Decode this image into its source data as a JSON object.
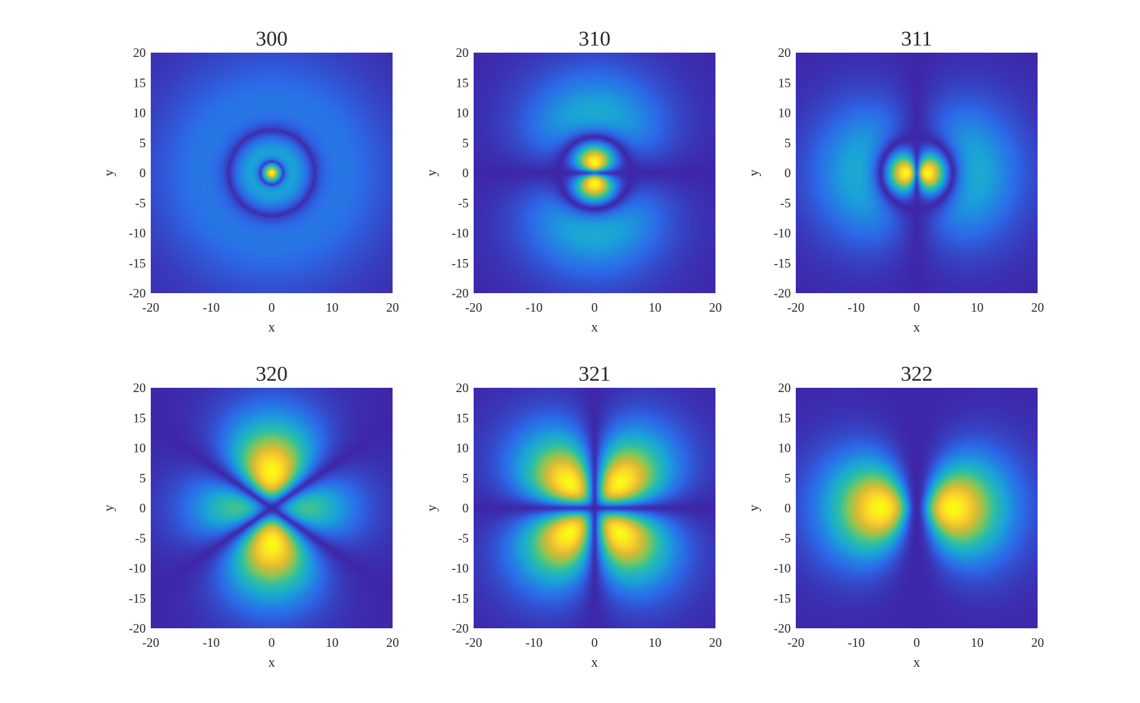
{
  "figure": {
    "background": "#ffffff",
    "colormap": "parula",
    "colormap_stops": [
      "#3e26a8",
      "#2c69e8",
      "#1aa3d9",
      "#2bbfa5",
      "#83c65a",
      "#d9ba33",
      "#fcd12b",
      "#f9fb14"
    ]
  },
  "chart_data": [
    {
      "type": "heatmap",
      "title": "300",
      "n": 3,
      "l": 0,
      "m": 0,
      "xlabel": "x",
      "ylabel": "y",
      "xlim": [
        -20,
        20
      ],
      "ylim": [
        -20,
        20
      ],
      "xticks": [
        -20,
        -10,
        0,
        10,
        20
      ],
      "yticks": [
        -20,
        -15,
        -10,
        -5,
        0,
        5,
        10,
        15,
        20
      ],
      "grid": false
    },
    {
      "type": "heatmap",
      "title": "310",
      "n": 3,
      "l": 1,
      "m": 0,
      "xlabel": "x",
      "ylabel": "y",
      "xlim": [
        -20,
        20
      ],
      "ylim": [
        -20,
        20
      ],
      "xticks": [
        -20,
        -10,
        0,
        10,
        20
      ],
      "yticks": [
        -20,
        -15,
        -10,
        -5,
        0,
        5,
        10,
        15,
        20
      ],
      "grid": false
    },
    {
      "type": "heatmap",
      "title": "311",
      "n": 3,
      "l": 1,
      "m": 1,
      "xlabel": "x",
      "ylabel": "y",
      "xlim": [
        -20,
        20
      ],
      "ylim": [
        -20,
        20
      ],
      "xticks": [
        -20,
        -10,
        0,
        10,
        20
      ],
      "yticks": [
        -20,
        -15,
        -10,
        -5,
        0,
        5,
        10,
        15,
        20
      ],
      "grid": false
    },
    {
      "type": "heatmap",
      "title": "320",
      "n": 3,
      "l": 2,
      "m": 0,
      "xlabel": "x",
      "ylabel": "y",
      "xlim": [
        -20,
        20
      ],
      "ylim": [
        -20,
        20
      ],
      "xticks": [
        -20,
        -10,
        0,
        10,
        20
      ],
      "yticks": [
        -20,
        -15,
        -10,
        -5,
        0,
        5,
        10,
        15,
        20
      ],
      "grid": false
    },
    {
      "type": "heatmap",
      "title": "321",
      "n": 3,
      "l": 2,
      "m": 1,
      "xlabel": "x",
      "ylabel": "y",
      "xlim": [
        -20,
        20
      ],
      "ylim": [
        -20,
        20
      ],
      "xticks": [
        -20,
        -10,
        0,
        10,
        20
      ],
      "yticks": [
        -20,
        -15,
        -10,
        -5,
        0,
        5,
        10,
        15,
        20
      ],
      "grid": false
    },
    {
      "type": "heatmap",
      "title": "322",
      "n": 3,
      "l": 2,
      "m": 2,
      "xlabel": "x",
      "ylabel": "y",
      "xlim": [
        -20,
        20
      ],
      "ylim": [
        -20,
        20
      ],
      "xticks": [
        -20,
        -10,
        0,
        10,
        20
      ],
      "yticks": [
        -20,
        -15,
        -10,
        -5,
        0,
        5,
        10,
        15,
        20
      ],
      "grid": false
    }
  ]
}
